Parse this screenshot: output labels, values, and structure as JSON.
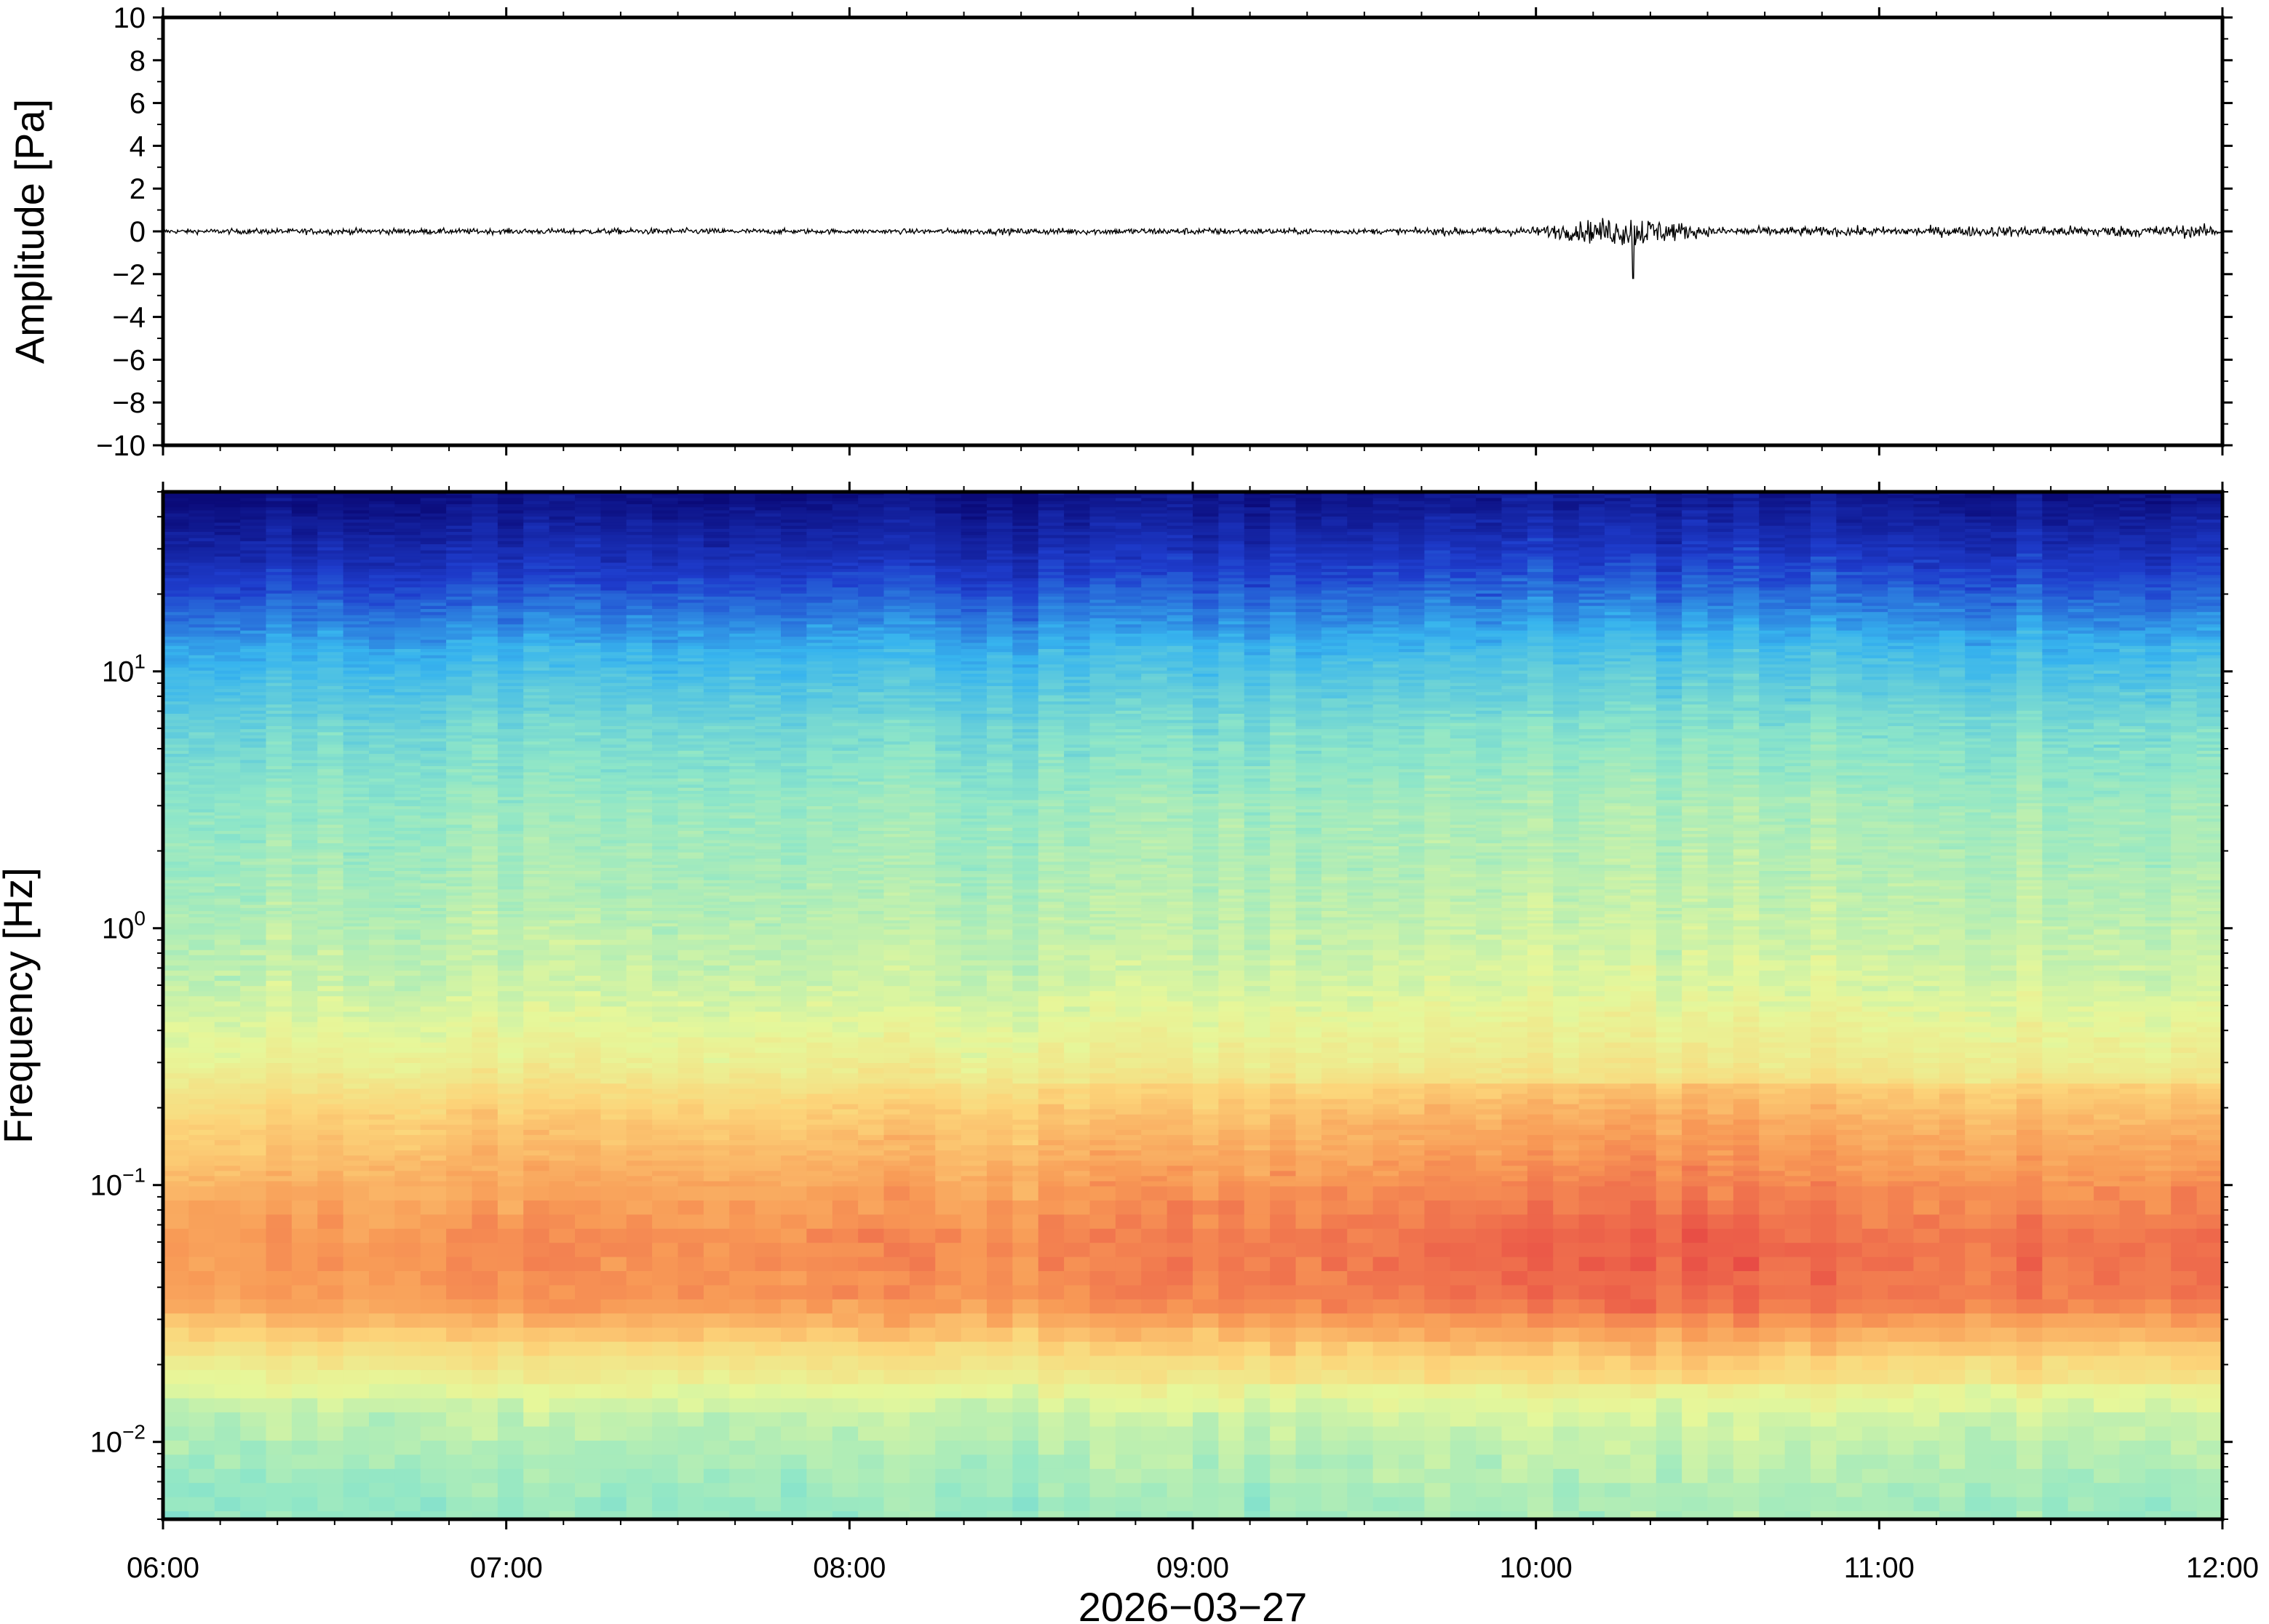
{
  "chart_data": [
    {
      "type": "line",
      "panel": "waveform",
      "ylabel": "Amplitude [Pa]",
      "ylim": [
        -10,
        10
      ],
      "yticks": [
        -10,
        -8,
        -6,
        -4,
        -2,
        0,
        2,
        4,
        6,
        8,
        10
      ],
      "ytick_labels": [
        "−10",
        "−8",
        "−6",
        "−4",
        "−2",
        "0",
        "2",
        "4",
        "6",
        "8",
        "10"
      ],
      "xlim": [
        "06:00",
        "12:00"
      ],
      "series": [
        {
          "x": [
            "06:00",
            "06:30",
            "07:00",
            "07:30",
            "08:00",
            "08:30",
            "09:00",
            "09:30",
            "10:00",
            "10:17",
            "10:30",
            "11:00",
            "11:30",
            "12:00"
          ],
          "envelope_max": [
            0.3,
            0.4,
            0.35,
            0.4,
            0.3,
            0.4,
            0.45,
            0.35,
            0.6,
            1.0,
            0.6,
            0.6,
            0.7,
            0.8
          ],
          "envelope_min": [
            -0.3,
            -0.4,
            -0.35,
            -0.4,
            -0.3,
            -0.4,
            -0.45,
            -0.35,
            -0.6,
            -2.2,
            -0.6,
            -0.6,
            -0.7,
            -0.8
          ]
        }
      ],
      "colors": {
        "trace": "#000000"
      }
    },
    {
      "type": "heatmap",
      "panel": "spectrogram",
      "ylabel": "Frequency [Hz]",
      "yscale": "log",
      "ylim": [
        0.005,
        50
      ],
      "yticks": [
        0.01,
        0.1,
        1,
        10
      ],
      "ytick_labels": [
        {
          "base": "10",
          "exp": "−2"
        },
        {
          "base": "10",
          "exp": "−1"
        },
        {
          "base": "10",
          "exp": "0"
        },
        {
          "base": "10",
          "exp": "1"
        }
      ],
      "x": [
        "06:00",
        "07:00",
        "08:00",
        "09:00",
        "10:00",
        "11:00",
        "12:00"
      ],
      "xtick_labels": [
        "06:00",
        "07:00",
        "08:00",
        "09:00",
        "10:00",
        "11:00",
        "12:00"
      ],
      "xlabel": "2026−03−27",
      "colormap": "rainbow",
      "colors": [
        "#0a0a78",
        "#1e3ccc",
        "#37b4ee",
        "#8ee6c8",
        "#e6f79a",
        "#fcd57a",
        "#f89a56",
        "#e84c45"
      ],
      "levels_by_frequency_hz": {
        "frequencies": [
          50,
          25,
          12,
          6,
          3,
          1.5,
          0.6,
          0.3,
          0.18,
          0.1,
          0.06,
          0.035,
          0.02,
          0.012,
          0.006
        ],
        "relative_level": [
          0.0,
          0.12,
          0.28,
          0.38,
          0.44,
          0.47,
          0.52,
          0.6,
          0.72,
          0.8,
          0.86,
          0.84,
          0.62,
          0.5,
          0.44
        ]
      },
      "activity_by_hour": {
        "hours": [
          "06:00",
          "07:00",
          "08:00",
          "09:00",
          "10:00",
          "10:30",
          "11:00",
          "12:00"
        ],
        "relative_boost": [
          0.0,
          0.02,
          0.02,
          0.05,
          0.09,
          0.11,
          0.07,
          0.08
        ]
      }
    }
  ]
}
